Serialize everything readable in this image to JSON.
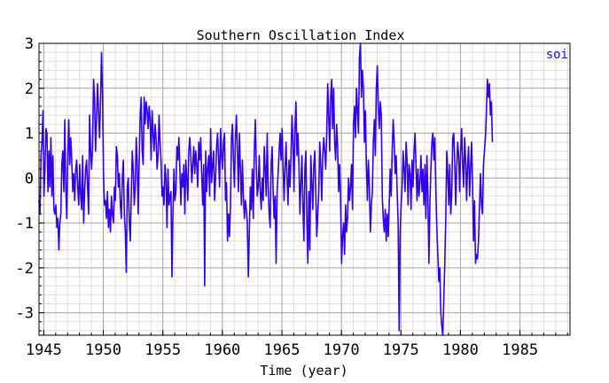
{
  "chart_data": {
    "type": "line",
    "title": "Southern Oscillation Index",
    "xlabel": "Time (year)",
    "ylabel": "",
    "xlim": [
      1944.6,
      1989.2
    ],
    "ylim": [
      -3.5,
      3.0
    ],
    "x_ticks": [
      1945,
      1950,
      1955,
      1960,
      1965,
      1970,
      1975,
      1980,
      1985
    ],
    "y_ticks": [
      -3,
      -2,
      -1,
      0,
      1,
      2,
      3
    ],
    "x_tick_labels": [
      "1945",
      "1950",
      "1955",
      "1960",
      "1965",
      "1970",
      "1975",
      "1980",
      "1985"
    ],
    "y_tick_labels": [
      "-3",
      "-2",
      "-1",
      "0",
      "1",
      "2",
      "3"
    ],
    "grid": true,
    "legend_position": "top-right",
    "series": [
      {
        "name": "soi",
        "color": "#3300ee",
        "x_start": 1944.6,
        "x_step": 0.08333,
        "values": [
          -0.5,
          -0.8,
          0.5,
          0.8,
          1.5,
          -0.4,
          0.2,
          1.1,
          1.0,
          -0.3,
          0.6,
          -0.2,
          0.9,
          -0.4,
          0.5,
          -0.7,
          -0.8,
          -0.6,
          -1.1,
          -0.9,
          -1.6,
          -1.0,
          -0.8,
          0.3,
          0.6,
          -0.3,
          1.3,
          -0.2,
          -0.9,
          0.5,
          1.3,
          0.3,
          0.9,
          0.4,
          -0.3,
          0.1,
          -0.5,
          0.2,
          0.4,
          -0.2,
          -0.6,
          0.3,
          -0.4,
          -0.7,
          0.5,
          -1.0,
          -0.3,
          0.2,
          0.4,
          -0.2,
          -0.8,
          1.4,
          0.6,
          0.2,
          0.7,
          2.2,
          1.8,
          0.6,
          1.3,
          2.1,
          1.5,
          0.9,
          1.7,
          2.8,
          1.9,
          0.1,
          -0.6,
          -0.5,
          -0.9,
          -0.3,
          -1.1,
          -0.7,
          -1.2,
          -0.4,
          -0.8,
          -1.0,
          -0.2,
          -0.5,
          0.7,
          0.5,
          -0.2,
          0.1,
          -0.6,
          -0.9,
          0.0,
          0.4,
          -0.8,
          -1.2,
          -2.1,
          -0.2,
          0.0,
          -1.0,
          -1.4,
          -0.4,
          0.6,
          0.2,
          -0.6,
          -0.2,
          0.9,
          0.3,
          -0.8,
          0.4,
          1.4,
          1.8,
          0.6,
          0.3,
          1.8,
          1.2,
          1.7,
          1.5,
          1.1,
          1.6,
          1.3,
          0.4,
          1.5,
          1.0,
          0.6,
          1.2,
          0.9,
          0.2,
          0.5,
          1.4,
          0.8,
          0.4,
          -0.4,
          -0.2,
          -0.6,
          0.3,
          0.0,
          -1.1,
          0.2,
          -0.6,
          -0.4,
          -0.3,
          -2.2,
          -0.8,
          0.2,
          -0.5,
          -0.3,
          0.7,
          0.4,
          0.9,
          0.2,
          -0.6,
          0.1,
          -0.2,
          0.3,
          -0.8,
          0.4,
          0.0,
          -0.5,
          0.6,
          0.9,
          0.5,
          -0.1,
          0.3,
          0.7,
          0.1,
          0.6,
          0.3,
          -0.2,
          0.8,
          0.4,
          0.9,
          0.1,
          -0.6,
          0.3,
          -2.4,
          0.6,
          -0.3,
          0.2,
          0.5,
          -0.4,
          1.1,
          -0.1,
          0.3,
          0.6,
          -0.5,
          0.0,
          0.7,
          1.0,
          0.4,
          -0.2,
          1.1,
          0.5,
          0.2,
          0.8,
          1.0,
          -0.5,
          -0.1,
          -1.4,
          -0.8,
          -1.3,
          -0.6,
          0.9,
          1.2,
          0.4,
          -0.2,
          0.9,
          1.4,
          0.6,
          -0.3,
          1.0,
          0.2,
          -0.6,
          0.4,
          -0.4,
          -0.9,
          -0.5,
          -0.7,
          -1.0,
          -2.2,
          -1.2,
          -0.2,
          -0.7,
          0.2,
          -0.9,
          0.6,
          1.3,
          0.3,
          -0.4,
          -0.2,
          0.5,
          -0.3,
          -0.7,
          0.0,
          -0.5,
          0.7,
          0.2,
          -0.4,
          1.0,
          -0.2,
          -0.8,
          -1.1,
          0.3,
          0.7,
          -0.3,
          -0.9,
          -0.4,
          -1.9,
          -0.3,
          0.1,
          0.6,
          1.0,
          0.4,
          1.1,
          0.3,
          -0.5,
          0.2,
          0.8,
          0.0,
          -0.6,
          0.4,
          -0.2,
          0.5,
          1.4,
          0.8,
          -0.3,
          1.1,
          1.7,
          0.5,
          1.0,
          0.3,
          -0.8,
          -0.1,
          0.5,
          -0.6,
          -1.4,
          0.2,
          0.6,
          -0.9,
          -1.9,
          -0.3,
          -1.6,
          0.5,
          -0.1,
          -0.7,
          0.3,
          0.6,
          -0.4,
          -1.3,
          -0.8,
          -0.3,
          0.8,
          0.3,
          -0.5,
          0.5,
          0.9,
          0.6,
          0.2,
          1.0,
          2.1,
          1.4,
          0.6,
          1.8,
          2.2,
          1.1,
          2.0,
          0.8,
          0.4,
          1.2,
          0.7,
          -0.3,
          0.3,
          -0.5,
          -1.9,
          -1.3,
          -1.0,
          -1.7,
          -0.6,
          -1.2,
          -0.9,
          0.0,
          -0.5,
          -0.2,
          0.3,
          -0.7,
          1.2,
          1.6,
          0.9,
          2.0,
          1.5,
          1.0,
          2.7,
          3.0,
          1.8,
          2.4,
          2.0,
          0.8,
          1.5,
          0.3,
          -0.5,
          0.4,
          -0.2,
          -1.2,
          -0.6,
          -0.3,
          0.8,
          1.3,
          0.5,
          2.0,
          2.5,
          1.6,
          1.1,
          1.7,
          1.4,
          -0.4,
          -0.9,
          -1.2,
          -0.7,
          -1.4,
          -0.8,
          -1.3,
          -0.6,
          0.2,
          -0.4,
          0.6,
          1.3,
          0.8,
          0.1,
          0.5,
          -0.3,
          -1.0,
          -3.4,
          -1.2,
          -0.6,
          -0.2,
          0.6,
          0.2,
          -0.3,
          0.8,
          0.4,
          -0.6,
          0.3,
          0.1,
          -0.7,
          0.4,
          -0.2,
          0.6,
          1.0,
          0.3,
          -0.5,
          0.2,
          -0.4,
          -0.1,
          0.5,
          -0.3,
          0.2,
          -0.6,
          0.3,
          -0.9,
          0.5,
          -0.4,
          -1.9,
          -0.6,
          0.2,
          0.8,
          1.0,
          0.4,
          0.9,
          -0.3,
          -1.1,
          -1.7,
          -2.3,
          -2.0,
          -3.0,
          -3.3,
          -3.5,
          -2.7,
          -1.9,
          -0.9,
          0.6,
          0.1,
          -0.6,
          0.3,
          -0.8,
          -0.4,
          0.9,
          1.0,
          0.4,
          -0.6,
          0.2,
          0.8,
          0.5,
          -0.3,
          0.6,
          1.1,
          0.3,
          -0.2,
          0.9,
          0.4,
          -0.5,
          0.3,
          0.7,
          -0.4,
          0.2,
          0.8,
          -0.1,
          -1.4,
          -0.5,
          -1.9,
          -1.7,
          -1.8,
          -1.4,
          -0.6,
          0.1,
          -0.6,
          -0.8,
          0.3,
          0.6,
          0.9,
          1.5,
          2.2,
          1.8,
          2.1,
          1.4,
          1.7,
          0.8
        ]
      }
    ]
  }
}
